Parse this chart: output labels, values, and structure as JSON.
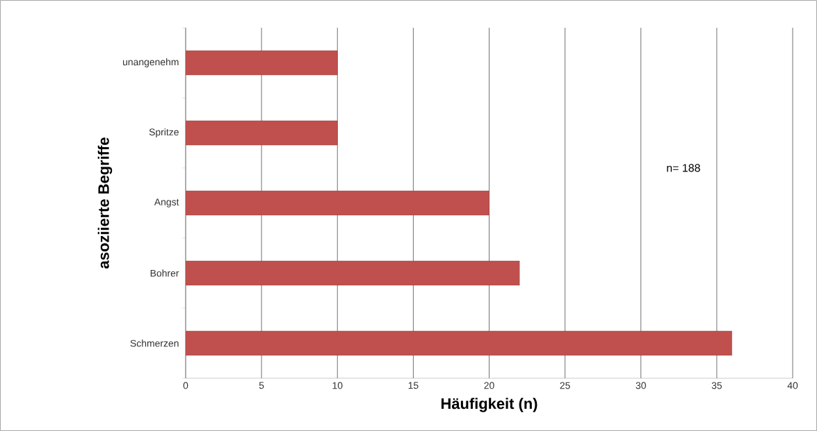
{
  "chart_data": {
    "type": "bar",
    "orientation": "horizontal",
    "xlabel": "Häufigkeit (n)",
    "ylabel": "asoziierte Begriffe",
    "categories": [
      "unangenehm",
      "Spritze",
      "Angst",
      "Bohrer",
      "Schmerzen"
    ],
    "values": [
      10,
      10,
      20,
      22,
      36
    ],
    "color": "#c0504d",
    "xlim": [
      0,
      40
    ],
    "xticks": [
      0,
      5,
      10,
      15,
      20,
      25,
      30,
      35,
      40
    ],
    "grid": "x",
    "annotations": [
      "n= 188"
    ]
  }
}
